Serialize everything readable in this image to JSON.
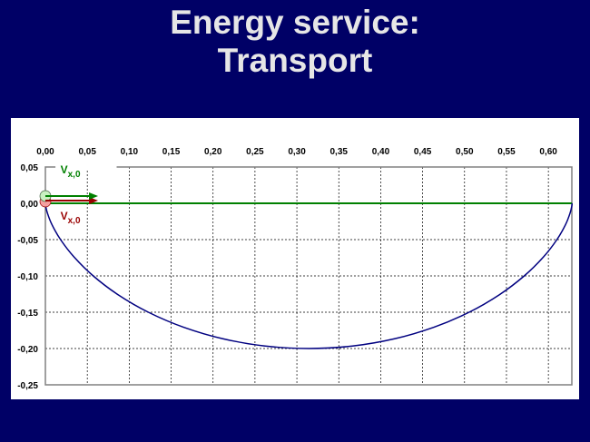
{
  "slide": {
    "title_line1": "Energy service:",
    "title_line2": "Transport"
  },
  "colors": {
    "background": "#000066",
    "title": "#e6e6e6",
    "trajectory": "#000080",
    "horizontal_path": "#008000",
    "arrow_green": "#008000",
    "arrow_red": "#990000"
  },
  "chart_data": {
    "type": "line",
    "title": "",
    "xlabel": "",
    "ylabel": "",
    "xlim": [
      0,
      0.628
    ],
    "ylim": [
      -0.25,
      0.05
    ],
    "x_axis_position": "top",
    "grid": true,
    "grid_style": "dashed",
    "x_ticks": [
      "0,00",
      "0,05",
      "0,10",
      "0,15",
      "0,20",
      "0,25",
      "0,30",
      "0,35",
      "0,40",
      "0,45",
      "0,50",
      "0,55",
      "0,60"
    ],
    "y_ticks": [
      "0,05",
      "0,00",
      "-0,05",
      "-0,10",
      "-0,15",
      "-0,20",
      "-0,25"
    ],
    "series": [
      {
        "color": "#000080",
        "x": [
          0,
          0.0003,
          0.0024,
          0.0078,
          0.0181,
          0.0343,
          0.0571,
          0.0867,
          0.1228,
          0.1649,
          0.2118,
          0.2621,
          0.3142,
          0.3662,
          0.4165,
          0.4634,
          0.5055,
          0.5416,
          0.5712,
          0.594,
          0.6102,
          0.6205,
          0.6259,
          0.628,
          0.6283
        ],
        "y": [
          0,
          -0.0034,
          -0.0134,
          -0.0293,
          -0.05,
          -0.0741,
          -0.1,
          -0.1259,
          -0.15,
          -0.1707,
          -0.1866,
          -0.1966,
          -0.2,
          -0.1966,
          -0.1866,
          -0.1707,
          -0.15,
          -0.1259,
          -0.1,
          -0.0741,
          -0.05,
          -0.0293,
          -0.0134,
          -0.0034,
          0
        ]
      },
      {
        "color": "#008000",
        "x": [
          0,
          0.6283
        ],
        "y": [
          0,
          0
        ]
      }
    ],
    "annotations": [
      {
        "text": "V",
        "subscript": "x,0",
        "color": "#008000"
      },
      {
        "text": "V",
        "subscript": "x,0",
        "color": "#990000"
      }
    ]
  }
}
